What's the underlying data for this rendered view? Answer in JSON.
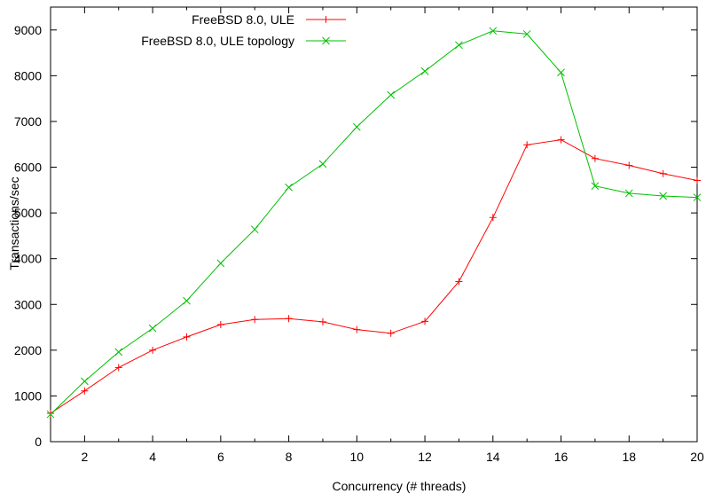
{
  "chart_data": {
    "type": "line",
    "xlabel": "Concurrency (# threads)",
    "ylabel": "Transactions/sec",
    "xlim": [
      1,
      20
    ],
    "ylim": [
      0,
      9500
    ],
    "x_ticks": [
      2,
      4,
      6,
      8,
      10,
      12,
      14,
      16,
      18,
      20
    ],
    "y_ticks": [
      0,
      1000,
      2000,
      3000,
      4000,
      5000,
      6000,
      7000,
      8000,
      9000
    ],
    "grid": false,
    "legend_position": "top-right",
    "x": [
      1,
      2,
      3,
      4,
      5,
      6,
      7,
      8,
      9,
      10,
      11,
      12,
      13,
      14,
      15,
      16,
      17,
      18,
      19,
      20
    ],
    "series": [
      {
        "name": "FreeBSD 8.0, ULE",
        "color": "#ff0000",
        "marker": "plus",
        "values": [
          620,
          1110,
          1620,
          2000,
          2290,
          2560,
          2670,
          2690,
          2620,
          2450,
          2370,
          2630,
          3500,
          4900,
          6490,
          6600,
          6190,
          6040,
          5860,
          5710
        ]
      },
      {
        "name": "FreeBSD 8.0, ULE topology",
        "color": "#00c000",
        "marker": "cross",
        "values": [
          600,
          1320,
          1960,
          2480,
          3080,
          3900,
          4640,
          5560,
          6070,
          6880,
          7580,
          8100,
          8670,
          8980,
          8910,
          8070,
          5590,
          5430,
          5370,
          5340
        ]
      }
    ]
  }
}
